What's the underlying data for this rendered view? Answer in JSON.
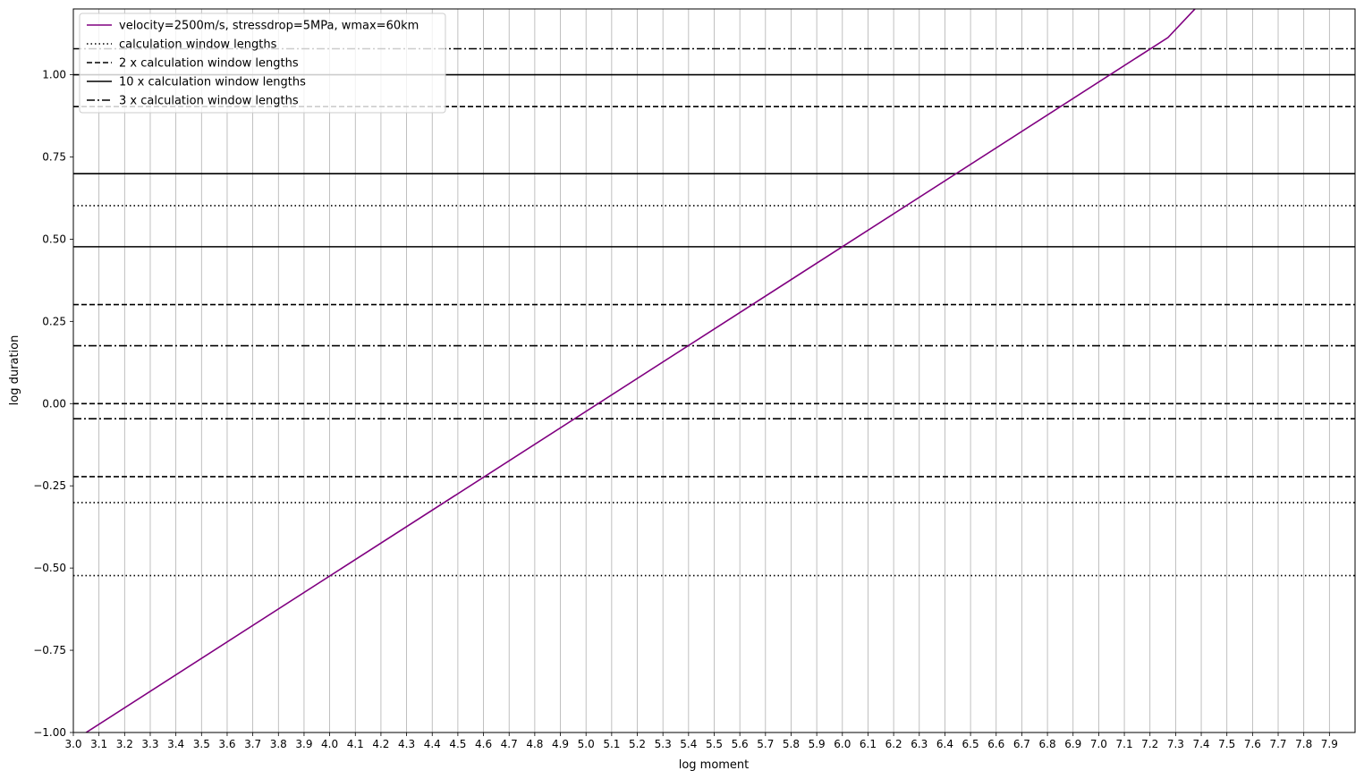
{
  "chart_data": {
    "type": "line",
    "title": "",
    "xlabel": "log moment",
    "ylabel": "log duration",
    "xlim": [
      3.0,
      8.0
    ],
    "ylim": [
      -1.0,
      1.2
    ],
    "grid": "vertical",
    "legend_position": "top-left",
    "x_ticks": [
      "3.0",
      "3.1",
      "3.2",
      "3.3",
      "3.4",
      "3.5",
      "3.6",
      "3.7",
      "3.8",
      "3.9",
      "4.0",
      "4.1",
      "4.2",
      "4.3",
      "4.4",
      "4.5",
      "4.6",
      "4.7",
      "4.8",
      "4.9",
      "5.0",
      "5.1",
      "5.2",
      "5.3",
      "5.4",
      "5.5",
      "5.6",
      "5.7",
      "5.8",
      "5.9",
      "6.0",
      "6.1",
      "6.2",
      "6.3",
      "6.4",
      "6.5",
      "6.6",
      "6.7",
      "6.8",
      "6.9",
      "7.0",
      "7.1",
      "7.2",
      "7.3",
      "7.4",
      "7.5",
      "7.6",
      "7.7",
      "7.8",
      "7.9"
    ],
    "y_ticks": [
      {
        "value": -1.0,
        "label": "−1.00"
      },
      {
        "value": -0.75,
        "label": "−0.75"
      },
      {
        "value": -0.5,
        "label": "−0.50"
      },
      {
        "value": -0.25,
        "label": "−0.25"
      },
      {
        "value": 0.0,
        "label": "0.00"
      },
      {
        "value": 0.25,
        "label": "0.25"
      },
      {
        "value": 0.5,
        "label": "0.50"
      },
      {
        "value": 0.75,
        "label": "0.75"
      },
      {
        "value": 1.0,
        "label": "1.00"
      }
    ],
    "series": [
      {
        "name": "velocity=2500m/s, stressdrop=5MPa, wmax=60km",
        "color": "#800080",
        "style": "solid",
        "x": [
          3.0,
          7.27,
          7.4
        ],
        "y": [
          -1.025,
          1.113,
          1.22
        ]
      }
    ],
    "hlines": [
      {
        "name": "calculation window lengths",
        "style": "dotted",
        "color": "#000000",
        "values": [
          -0.523,
          -0.301,
          0.602
        ]
      },
      {
        "name": "2 x calculation window lengths",
        "style": "dashed",
        "color": "#000000",
        "values": [
          -0.222,
          0.0,
          0.301,
          0.903
        ]
      },
      {
        "name": "10 x calculation window lengths",
        "style": "solid",
        "color": "#000000",
        "values": [
          0.477,
          0.699,
          1.0
        ]
      },
      {
        "name": "3 x calculation window lengths",
        "style": "dashdot",
        "color": "#000000",
        "values": [
          -0.046,
          0.176,
          1.079
        ]
      }
    ],
    "legend": [
      {
        "label": "velocity=2500m/s, stressdrop=5MPa, wmax=60km",
        "style": "solid",
        "color": "#800080"
      },
      {
        "label": "calculation window lengths",
        "style": "dotted",
        "color": "#000000"
      },
      {
        "label": "2 x calculation window lengths",
        "style": "dashed",
        "color": "#000000"
      },
      {
        "label": "10 x calculation window lengths",
        "style": "solid",
        "color": "#000000"
      },
      {
        "label": "3 x calculation window lengths",
        "style": "dashdot",
        "color": "#000000"
      }
    ]
  }
}
